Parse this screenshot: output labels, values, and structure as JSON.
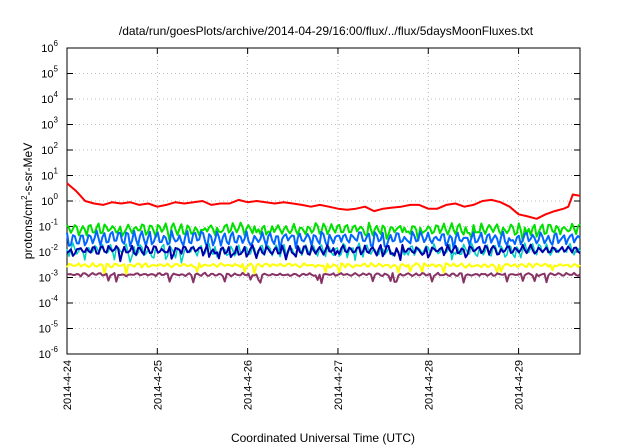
{
  "chart_data": {
    "type": "line",
    "title": "/data/run/goesPlots/archive/2014-04-29/16:00/flux/../flux/5daysMoonFluxes.txt",
    "xlabel": "Coordinated Universal Time (UTC)",
    "ylabel": "protons/cm²-s-sr-MeV",
    "ylabel_parts": {
      "prefix": "protons/cm",
      "sup": "2",
      "suffix": "-s-sr-MeV"
    },
    "y_scale": "log",
    "ylim": [
      1e-06,
      1000000.0
    ],
    "y_ticks": [
      {
        "base": "10",
        "exp": "-6"
      },
      {
        "base": "10",
        "exp": "-5"
      },
      {
        "base": "10",
        "exp": "-4"
      },
      {
        "base": "10",
        "exp": "-3"
      },
      {
        "base": "10",
        "exp": "-2"
      },
      {
        "base": "10",
        "exp": "-1"
      },
      {
        "base": "10",
        "exp": "0"
      },
      {
        "base": "10",
        "exp": "1"
      },
      {
        "base": "10",
        "exp": "2"
      },
      {
        "base": "10",
        "exp": "3"
      },
      {
        "base": "10",
        "exp": "4"
      },
      {
        "base": "10",
        "exp": "5"
      },
      {
        "base": "10",
        "exp": "6"
      }
    ],
    "x_ticks": [
      "2014-4-24",
      "2014-4-25",
      "2014-4-26",
      "2014-4-27",
      "2014-4-28",
      "2014-4-29"
    ],
    "xlim_days": [
      0,
      5.68
    ],
    "grid": true,
    "series": [
      {
        "color": "#ff0000",
        "width": 2,
        "x": [
          0,
          0.05,
          0.1,
          0.15,
          0.2,
          0.3,
          0.4,
          0.5,
          0.6,
          0.7,
          0.8,
          0.9,
          1.0,
          1.1,
          1.2,
          1.3,
          1.4,
          1.5,
          1.6,
          1.7,
          1.8,
          1.9,
          2.0,
          2.1,
          2.2,
          2.3,
          2.4,
          2.5,
          2.6,
          2.7,
          2.8,
          2.9,
          3.0,
          3.1,
          3.2,
          3.3,
          3.4,
          3.5,
          3.6,
          3.7,
          3.8,
          3.9,
          4.0,
          4.1,
          4.2,
          4.3,
          4.4,
          4.5,
          4.6,
          4.7,
          4.8,
          4.9,
          5.0,
          5.1,
          5.2,
          5.3,
          5.4,
          5.5,
          5.55,
          5.6,
          5.68
        ],
        "y": [
          5,
          3.5,
          2.5,
          1.6,
          1.0,
          0.8,
          0.7,
          0.9,
          0.8,
          0.9,
          0.7,
          0.8,
          0.6,
          0.7,
          0.9,
          0.8,
          0.9,
          1.0,
          0.7,
          0.8,
          0.8,
          1.1,
          0.9,
          1.0,
          0.9,
          0.8,
          0.9,
          0.8,
          0.7,
          0.6,
          0.7,
          0.6,
          0.5,
          0.45,
          0.5,
          0.6,
          0.4,
          0.5,
          0.55,
          0.6,
          0.7,
          0.7,
          0.5,
          0.5,
          0.7,
          0.8,
          0.6,
          0.7,
          1.0,
          1.1,
          0.9,
          0.6,
          0.3,
          0.25,
          0.2,
          0.3,
          0.4,
          0.5,
          0.6,
          1.8,
          1.6
        ]
      },
      {
        "color": "#00e000",
        "width": 2,
        "x": [],
        "y": [],
        "base": 0.08,
        "amp": 2.2,
        "jitter": 0.2
      },
      {
        "color": "#0066ff",
        "width": 2,
        "x": [],
        "y": [],
        "base": 0.035,
        "amp": 2.6,
        "jitter": 0.25
      },
      {
        "color": "#00d0c0",
        "width": 1.5,
        "x": [],
        "y": [],
        "base": 0.012,
        "amp": 2.4,
        "jitter": 0.25
      },
      {
        "color": "#0000aa",
        "width": 2,
        "x": [],
        "y": [],
        "base": 0.012,
        "amp": 1.8,
        "jitter": 0.2
      },
      {
        "color": "#ffff00",
        "width": 2,
        "x": [],
        "y": [],
        "base": 0.003,
        "amp": 1.3,
        "jitter": 0.1
      },
      {
        "color": "#883366",
        "width": 2,
        "x": [],
        "y": [],
        "base": 0.0013,
        "amp": 1.2,
        "jitter": 0.08
      }
    ]
  }
}
